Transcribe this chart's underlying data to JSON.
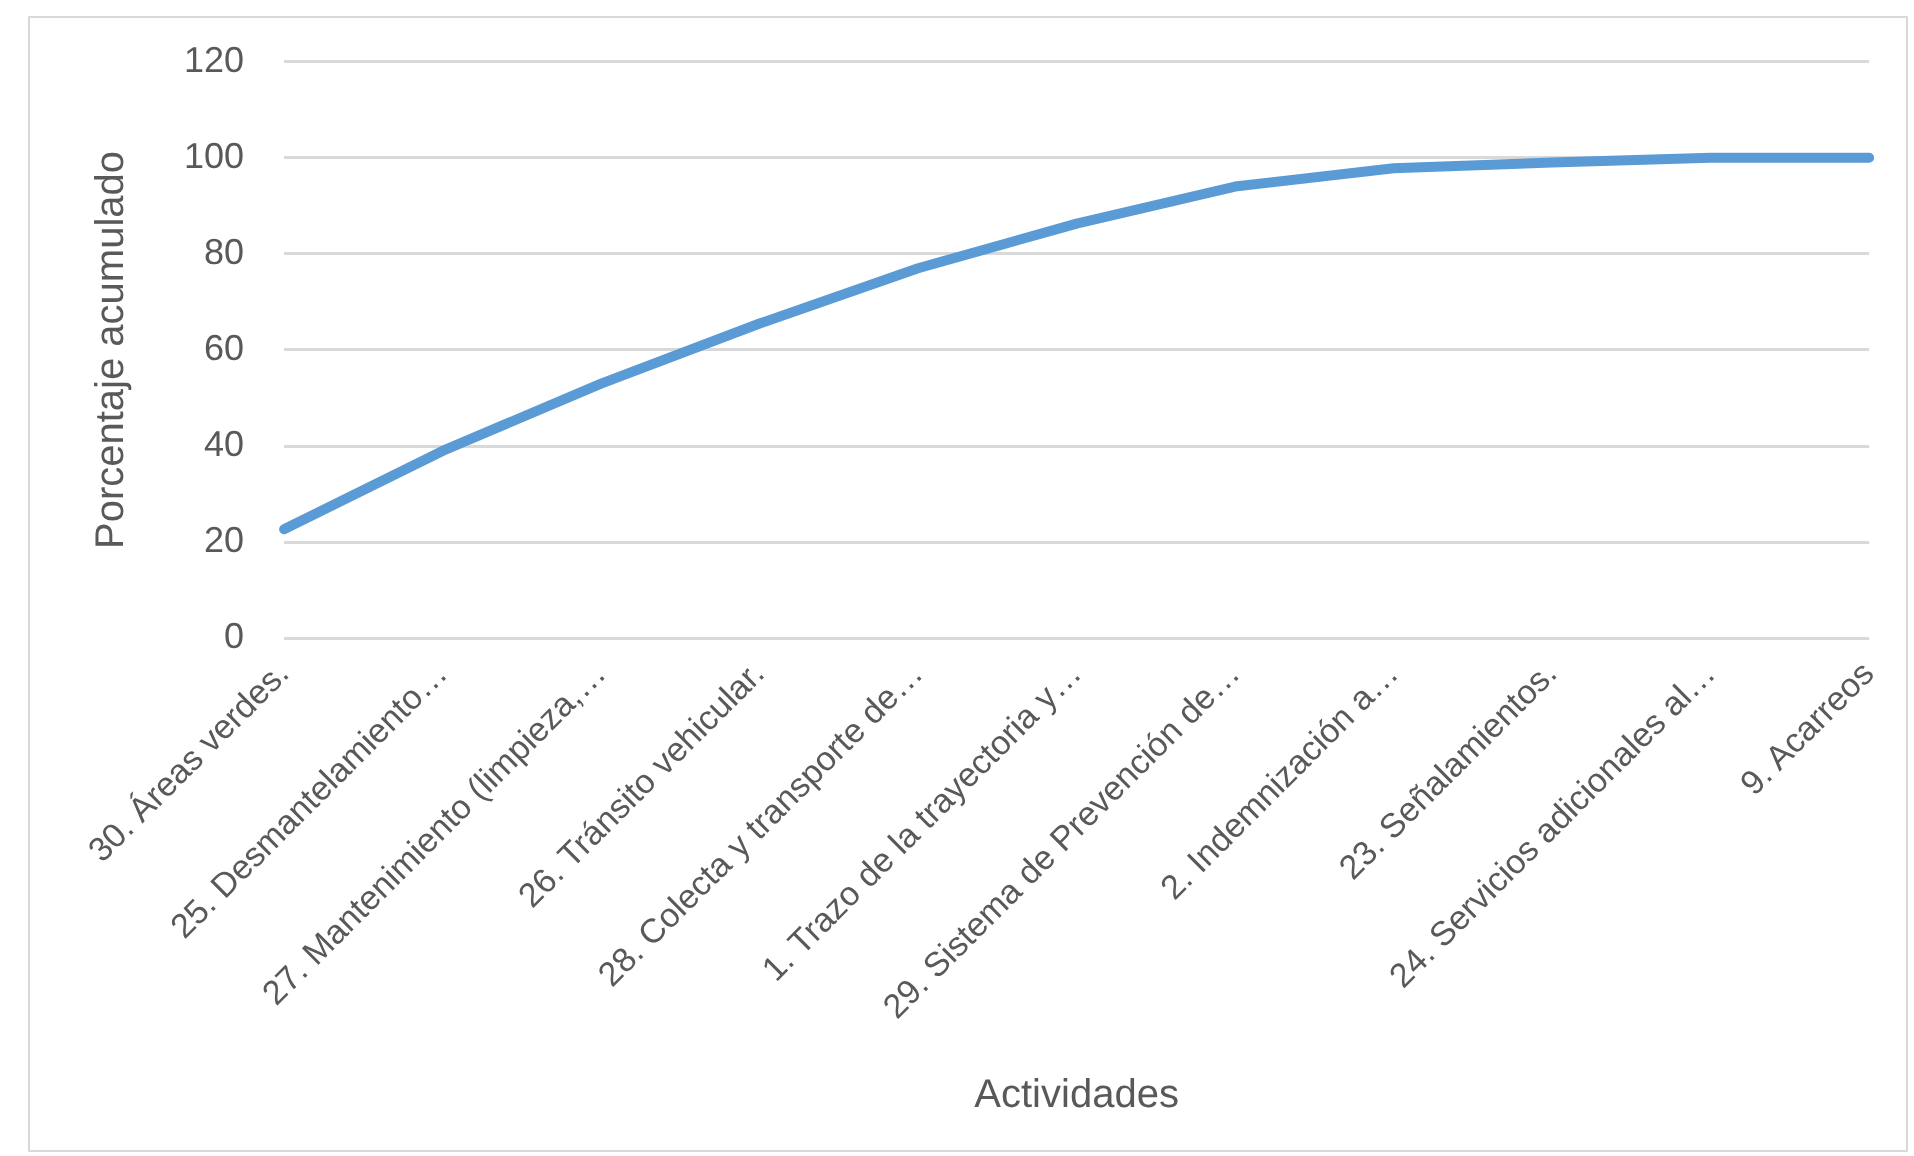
{
  "chart_data": {
    "type": "line",
    "xlabel": "Actividades",
    "ylabel": "Porcentaje acumulado",
    "categories": [
      "30. Áreas verdes.",
      "25. Desmantelamiento…",
      "27. Mantenimiento (limpieza,…",
      "26. Tránsito vehicular.",
      "28. Colecta y transporte de…",
      "1. Trazo de la trayectoria y…",
      "29. Sistema de Prevención de…",
      "2. Indemnización a…",
      "23. Señalamientos.",
      "24. Servicios adicionales al…",
      "9. Acarreos"
    ],
    "series": [
      {
        "color": "#5b9bd5",
        "values": [
          22.7,
          39,
          53,
          65.5,
          77,
          86.3,
          94,
          97.8,
          99,
          100,
          100
        ]
      }
    ],
    "ylim": [
      0,
      120
    ],
    "yticks": [
      0,
      20,
      40,
      60,
      80,
      100,
      120
    ],
    "grid": "y",
    "legend": false,
    "marker": "none",
    "line_style": "solid"
  }
}
